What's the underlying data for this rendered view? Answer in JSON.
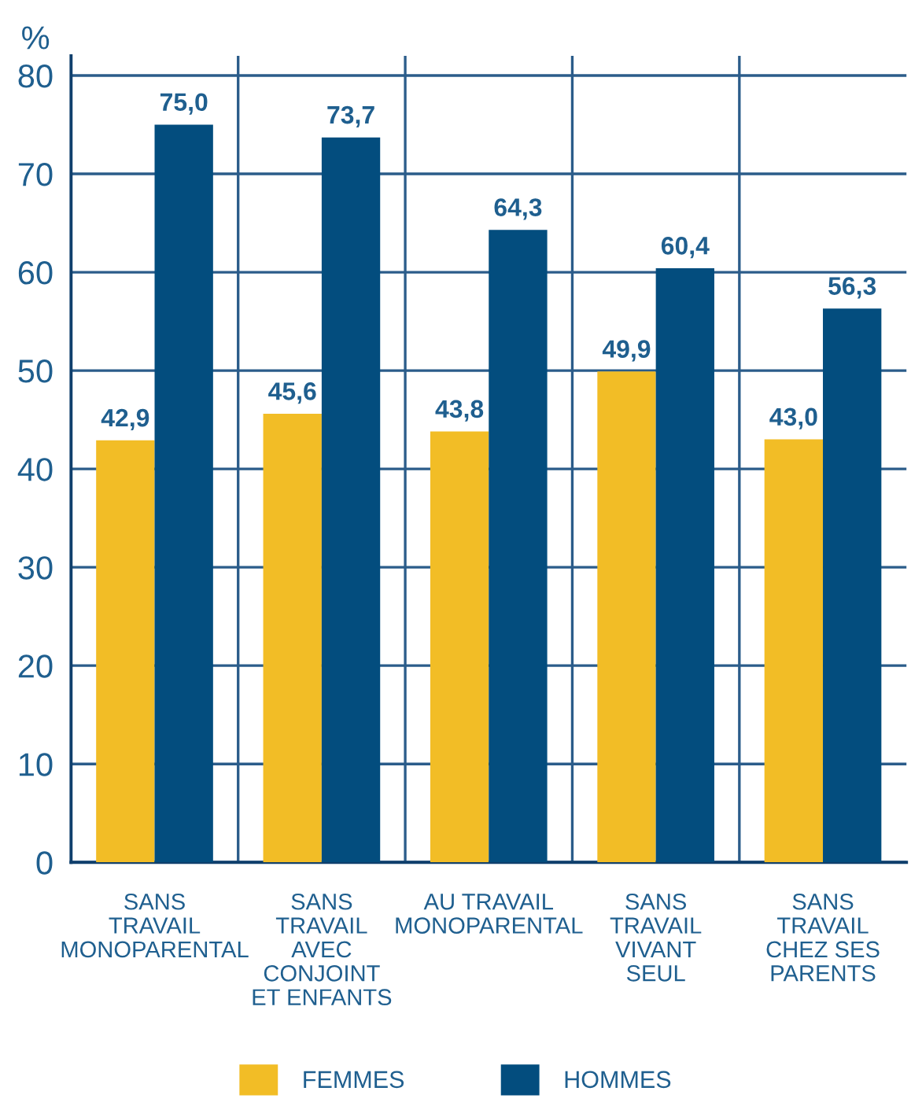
{
  "chart_data": {
    "type": "bar",
    "ylabel": "%",
    "categories": [
      "SANS\nTRAVAIL\nMONOPARENTAL",
      "SANS\nTRAVAIL\nAVEC\nCONJOINT\nET ENFANTS",
      "AU TRAVAIL\nMONOPARENTAL",
      "SANS\nTRAVAIL\nVIVANT\nSEUL",
      "SANS\nTRAVAIL\nCHEZ SES\nPARENTS"
    ],
    "series": [
      {
        "name": "FEMMES",
        "color": "#f2bd26",
        "values": [
          42.9,
          45.6,
          43.8,
          49.9,
          43.0
        ],
        "value_labels": [
          "42,9",
          "45,6",
          "43,8",
          "49,9",
          "43,0"
        ]
      },
      {
        "name": "HOMMES",
        "color": "#034d7e",
        "values": [
          75.0,
          73.7,
          64.3,
          60.4,
          56.3
        ],
        "value_labels": [
          "75,0",
          "73,7",
          "64,3",
          "60,4",
          "56,3"
        ]
      }
    ],
    "ylim": [
      0,
      82
    ],
    "yticks": [
      0,
      10,
      20,
      30,
      40,
      50,
      60,
      70,
      80
    ],
    "grid": true,
    "legend": "bottom"
  }
}
